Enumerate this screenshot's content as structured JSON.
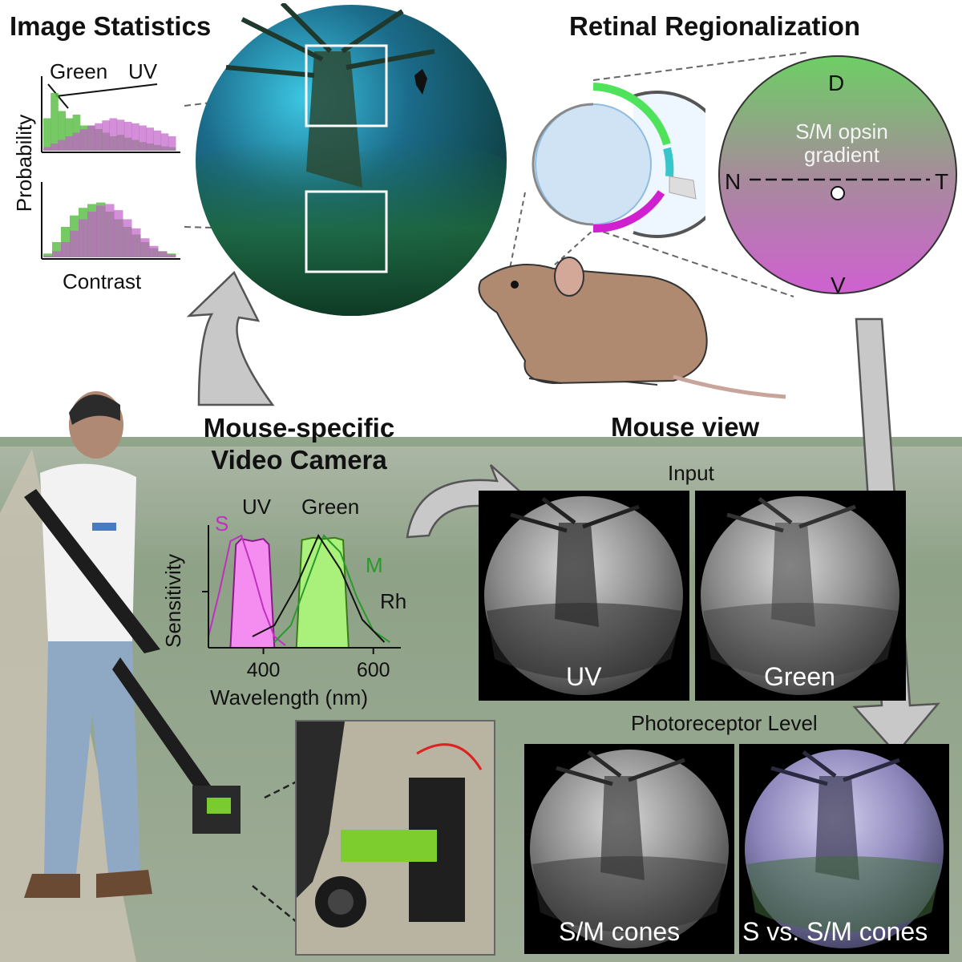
{
  "panels": {
    "image_statistics": {
      "title": "Image Statistics",
      "legend_green": "Green",
      "legend_uv": "UV",
      "ylabel": "Probability",
      "xlabel": "Contrast"
    },
    "retinal_regionalization": {
      "title": "Retinal Regionalization",
      "gradient_line1": "S/M opsin",
      "gradient_line2": "gradient",
      "dir_dorsal": "D",
      "dir_ventral": "V",
      "dir_nasal": "N",
      "dir_temporal": "T"
    },
    "camera": {
      "title_line1": "Mouse-specific",
      "title_line2": "Video Camera"
    },
    "sensitivity": {
      "ylabel": "Sensitivity",
      "xlabel": "Wavelength (nm)",
      "ticks": [
        "400",
        "600"
      ],
      "label_s": "S",
      "label_uv": "UV",
      "label_green": "Green",
      "label_m": "M",
      "label_rh": "Rh"
    },
    "mouse_view": {
      "title": "Mouse view",
      "input_label": "Input",
      "uv_label": "UV",
      "green_label": "Green",
      "photoreceptor_label": "Photoreceptor Level",
      "sm_label": "S/M cones",
      "svs_label": "S vs. S/M cones"
    }
  },
  "colors": {
    "uv": "#b23bb5",
    "green": "#3fa832",
    "s_opsin": "#c030c0",
    "m_opsin": "#2a9a2a",
    "arrow": "#c8c8c8"
  },
  "chart_data": [
    {
      "type": "bar",
      "title": "",
      "xlabel": "Contrast",
      "ylabel": "Probability",
      "series": [
        {
          "name": "Green",
          "values": [
            0.45,
            0.8,
            0.55,
            0.45,
            0.5,
            0.35,
            0.35,
            0.3,
            0.25,
            0.2,
            0.22,
            0.18,
            0.15,
            0.12,
            0.1,
            0.08,
            0.06,
            0.05
          ]
        },
        {
          "name": "UV",
          "values": [
            0.05,
            0.1,
            0.15,
            0.2,
            0.25,
            0.3,
            0.35,
            0.38,
            0.42,
            0.45,
            0.43,
            0.4,
            0.38,
            0.35,
            0.32,
            0.28,
            0.24,
            0.2
          ]
        }
      ]
    },
    {
      "type": "bar",
      "title": "",
      "xlabel": "Contrast",
      "ylabel": "Probability",
      "series": [
        {
          "name": "Green",
          "values": [
            0.05,
            0.2,
            0.4,
            0.55,
            0.65,
            0.7,
            0.72,
            0.6,
            0.5,
            0.4,
            0.3,
            0.2,
            0.12,
            0.08,
            0.05
          ]
        },
        {
          "name": "UV",
          "values": [
            0.02,
            0.08,
            0.2,
            0.35,
            0.5,
            0.6,
            0.68,
            0.7,
            0.62,
            0.5,
            0.38,
            0.25,
            0.15,
            0.08,
            0.04
          ]
        }
      ]
    },
    {
      "type": "line",
      "title": "",
      "xlabel": "Wavelength (nm)",
      "ylabel": "Sensitivity",
      "xlim": [
        300,
        650
      ],
      "ylim": [
        0,
        1
      ],
      "series": [
        {
          "name": "S",
          "x": [
            300,
            320,
            340,
            360,
            380,
            400,
            420,
            440
          ],
          "y": [
            0.1,
            0.5,
            0.95,
            1.0,
            0.7,
            0.35,
            0.1,
            0.02
          ]
        },
        {
          "name": "M",
          "x": [
            420,
            450,
            480,
            510,
            540,
            570,
            600,
            630
          ],
          "y": [
            0.05,
            0.2,
            0.6,
            1.0,
            0.85,
            0.45,
            0.15,
            0.05
          ]
        },
        {
          "name": "Rh",
          "x": [
            380,
            420,
            460,
            500,
            540,
            580,
            620
          ],
          "y": [
            0.1,
            0.2,
            0.55,
            1.0,
            0.7,
            0.25,
            0.05
          ]
        },
        {
          "name": "UV",
          "x": [
            340,
            350,
            360,
            380,
            400,
            410,
            420
          ],
          "y": [
            0.0,
            0.92,
            0.97,
            0.95,
            0.97,
            0.92,
            0.0
          ]
        },
        {
          "name": "Green",
          "x": [
            460,
            470,
            490,
            510,
            530,
            545,
            555
          ],
          "y": [
            0.0,
            0.96,
            0.98,
            0.97,
            0.98,
            0.96,
            0.0
          ]
        }
      ]
    }
  ]
}
